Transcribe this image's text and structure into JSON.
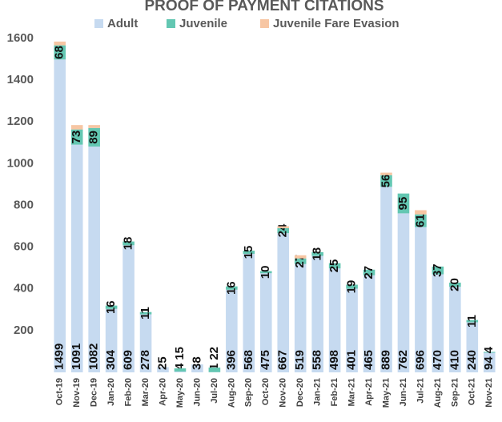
{
  "chart_data": {
    "type": "stacked_bar",
    "title": "PROOF OF PAYMENT CITATIONS",
    "categories": [
      "Oct-19",
      "Nov-19",
      "Dec-19",
      "Jan-20",
      "Feb-20",
      "Mar-20",
      "Apr-20",
      "May-20",
      "Jun-20",
      "Jul-20",
      "Aug-20",
      "Sep-20",
      "Oct-20",
      "Nov-20",
      "Dec-20",
      "Jan-21",
      "Feb-21",
      "Mar-21",
      "Apr-21",
      "May-21",
      "Jun-21",
      "Jul-21",
      "Aug-21",
      "Sep-21",
      "Oct-21",
      "Nov-21"
    ],
    "series": [
      {
        "name": "Adult",
        "color": "#c6daf0",
        "show_labels": true,
        "values": [
          1499,
          1091,
          1082,
          304,
          609,
          278,
          25,
          4,
          38,
          1,
          396,
          568,
          475,
          667,
          519,
          558,
          498,
          401,
          465,
          889,
          762,
          696,
          470,
          410,
          240,
          94
        ]
      },
      {
        "name": "Juvenile",
        "color": "#63c7b2",
        "show_labels": true,
        "values": [
          68,
          73,
          89,
          16,
          18,
          11,
          null,
          15,
          null,
          22,
          16,
          15,
          10,
          24,
          27,
          18,
          25,
          19,
          27,
          56,
          95,
          61,
          37,
          20,
          11,
          4
        ]
      },
      {
        "name": "Juvenile Fare Evasion",
        "color": "#f7c6a3",
        "show_labels": false,
        "values": [
          18,
          21,
          14,
          0,
          0,
          0,
          0,
          0,
          0,
          0,
          0,
          0,
          0,
          9,
          15,
          0,
          0,
          0,
          0,
          12,
          0,
          20,
          0,
          0,
          0,
          0
        ]
      }
    ],
    "ylim": [
      0,
      1600
    ],
    "yticks": [
      200,
      400,
      600,
      800,
      1000,
      1200,
      1400,
      1600
    ],
    "grid": false
  }
}
